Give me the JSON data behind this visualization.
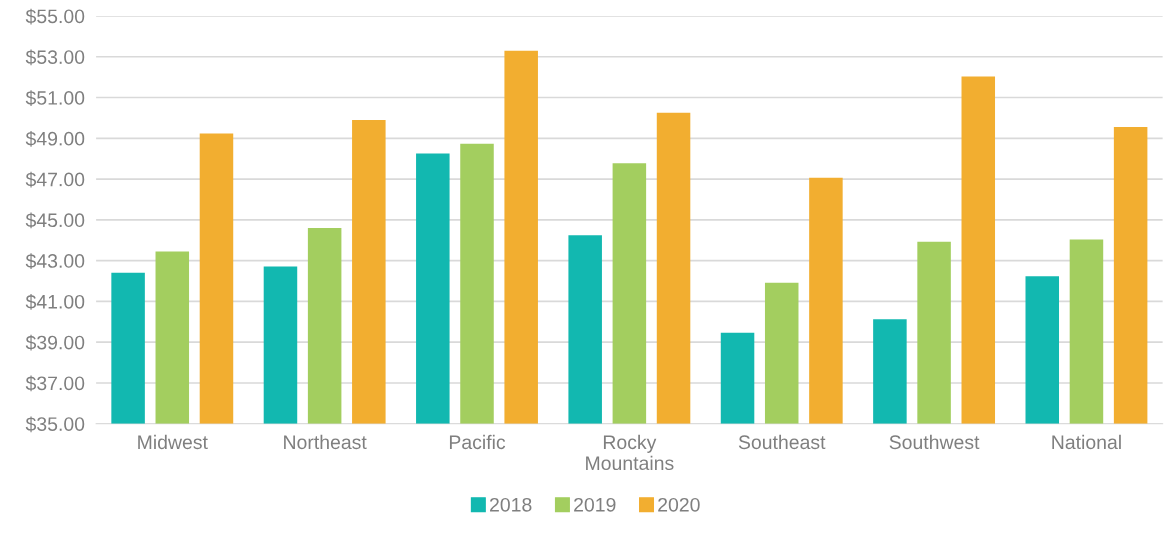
{
  "chart_data": {
    "type": "bar",
    "categories": [
      "Midwest",
      "Northeast",
      "Pacific",
      "Rocky\nMountains",
      "Southeast",
      "Southwest",
      "National"
    ],
    "series": [
      {
        "name": "2018",
        "color": "#12b8b0",
        "values": [
          42.41,
          42.71,
          48.26,
          44.25,
          39.46,
          40.13,
          42.24
        ]
      },
      {
        "name": "2019",
        "color": "#a3ce5f",
        "values": [
          43.45,
          44.6,
          48.73,
          47.78,
          41.91,
          43.93,
          44.04
        ]
      },
      {
        "name": "2020",
        "color": "#f2ae30",
        "values": [
          49.24,
          49.9,
          53.29,
          50.26,
          47.07,
          52.03,
          49.56
        ]
      }
    ],
    "ylim": [
      35,
      55
    ],
    "yticks": [
      {
        "value": 35,
        "label": "$35.00"
      },
      {
        "value": 37,
        "label": "$37.00"
      },
      {
        "value": 39,
        "label": "$39.00"
      },
      {
        "value": 41,
        "label": "$41.00"
      },
      {
        "value": 43,
        "label": "$43.00"
      },
      {
        "value": 45,
        "label": "$45.00"
      },
      {
        "value": 47,
        "label": "$47.00"
      },
      {
        "value": 49,
        "label": "$49.00"
      },
      {
        "value": 51,
        "label": "$51.00"
      },
      {
        "value": 53,
        "label": "$53.00"
      },
      {
        "value": 55,
        "label": "$55.00"
      }
    ],
    "grid": "y",
    "legend": "bottom"
  }
}
